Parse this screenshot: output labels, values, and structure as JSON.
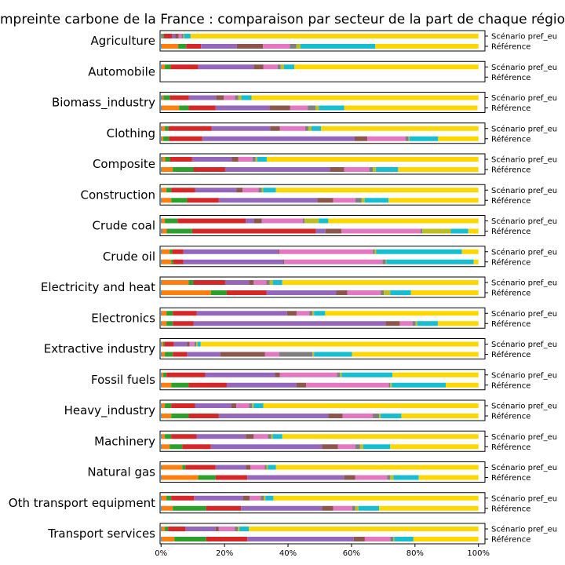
{
  "chart_data": {
    "type": "bar",
    "orientation": "horizontal-stacked-100",
    "title": "Empreinte carbone de la France : comparaison par secteur de la part de chaque région",
    "xlabel": "",
    "ylabel": "",
    "xlim": [
      0,
      1
    ],
    "xticks": [
      "0%",
      "20%",
      "40%",
      "60%",
      "80%",
      "100%"
    ],
    "grid": false,
    "legend": "none",
    "row_labels": [
      "Scénario pref_eu",
      "Référence"
    ],
    "segment_colors": [
      "#1f77b4",
      "#ff7f0e",
      "#2ca02c",
      "#d62728",
      "#9467bd",
      "#8c564b",
      "#e377c2",
      "#7f7f7f",
      "#bcbd22",
      "#17becf",
      "#ffd700"
    ],
    "sectors": [
      {
        "name": "Agriculture",
        "scenario": [
          0.003,
          0.002,
          0.004,
          0.026,
          0.01,
          0.01,
          0.01,
          0.005,
          0.003,
          0.02,
          0.907
        ],
        "reference": [
          0.002,
          0.052,
          0.025,
          0.047,
          0.113,
          0.082,
          0.085,
          0.02,
          0.013,
          0.236,
          0.325
        ]
      },
      {
        "name": "Automobile",
        "scenario": [
          0.002,
          0.01,
          0.018,
          0.087,
          0.175,
          0.03,
          0.045,
          0.01,
          0.01,
          0.033,
          0.58
        ]
      },
      {
        "name": "Biomass_industry",
        "scenario": [
          0.003,
          0.005,
          0.02,
          0.06,
          0.085,
          0.025,
          0.035,
          0.01,
          0.01,
          0.032,
          0.715
        ],
        "reference": [
          0.002,
          0.055,
          0.03,
          0.085,
          0.17,
          0.065,
          0.055,
          0.025,
          0.01,
          0.08,
          0.42
        ]
      },
      {
        "name": "Clothing",
        "scenario": [
          0.002,
          0.01,
          0.012,
          0.135,
          0.185,
          0.03,
          0.08,
          0.01,
          0.01,
          0.03,
          0.496
        ],
        "reference": [
          0.002,
          0.005,
          0.018,
          0.105,
          0.48,
          0.04,
          0.12,
          0.01,
          0.003,
          0.09,
          0.127
        ]
      },
      {
        "name": "Composite",
        "scenario": [
          0.003,
          0.01,
          0.015,
          0.07,
          0.125,
          0.02,
          0.045,
          0.01,
          0.005,
          0.03,
          0.667
        ],
        "reference": [
          0.002,
          0.035,
          0.065,
          0.1,
          0.33,
          0.045,
          0.08,
          0.01,
          0.01,
          0.07,
          0.253
        ]
      },
      {
        "name": "Construction",
        "scenario": [
          0.002,
          0.015,
          0.015,
          0.075,
          0.13,
          0.02,
          0.05,
          0.01,
          0.005,
          0.04,
          0.638
        ],
        "reference": [
          0.002,
          0.03,
          0.05,
          0.1,
          0.31,
          0.05,
          0.07,
          0.02,
          0.01,
          0.075,
          0.283
        ]
      },
      {
        "name": "Crude coal",
        "scenario": [
          0.002,
          0.01,
          0.04,
          0.215,
          0.025,
          0.025,
          0.13,
          0.005,
          0.045,
          0.03,
          0.473
        ],
        "reference": [
          0.003,
          0.015,
          0.08,
          0.39,
          0.03,
          0.05,
          0.25,
          0.005,
          0.09,
          0.055,
          0.032
        ]
      },
      {
        "name": "Crude oil",
        "scenario": [
          0.002,
          0.025,
          0.008,
          0.035,
          0.3,
          0.003,
          0.295,
          0.005,
          0.005,
          0.27,
          0.052
        ],
        "reference": [
          0.002,
          0.03,
          0.006,
          0.032,
          0.315,
          0.003,
          0.31,
          0.01,
          0.002,
          0.275,
          0.015
        ]
      },
      {
        "name": "Electricity and heat",
        "scenario": [
          0.002,
          0.085,
          0.015,
          0.1,
          0.075,
          0.015,
          0.04,
          0.01,
          0.01,
          0.03,
          0.618
        ],
        "reference": [
          0.002,
          0.155,
          0.05,
          0.125,
          0.22,
          0.035,
          0.105,
          0.01,
          0.02,
          0.065,
          0.213
        ]
      },
      {
        "name": "Electronics",
        "scenario": [
          0.002,
          0.015,
          0.02,
          0.075,
          0.285,
          0.03,
          0.04,
          0.01,
          0.005,
          0.035,
          0.483
        ],
        "reference": [
          0.002,
          0.015,
          0.02,
          0.065,
          0.605,
          0.045,
          0.04,
          0.01,
          0.005,
          0.065,
          0.128
        ]
      },
      {
        "name": "Extractive industry",
        "scenario": [
          0.002,
          0.004,
          0.004,
          0.03,
          0.042,
          0.008,
          0.015,
          0.006,
          0.004,
          0.01,
          0.875
        ],
        "reference": [
          0.002,
          0.01,
          0.025,
          0.045,
          0.105,
          0.14,
          0.045,
          0.105,
          0.005,
          0.12,
          0.398
        ]
      },
      {
        "name": "Fossil fuels",
        "scenario": [
          0.002,
          0.005,
          0.01,
          0.122,
          0.22,
          0.015,
          0.18,
          0.01,
          0.005,
          0.16,
          0.271
        ],
        "reference": [
          0.002,
          0.03,
          0.055,
          0.12,
          0.22,
          0.03,
          0.26,
          0.005,
          0.005,
          0.17,
          0.103
        ]
      },
      {
        "name": "Heavy_industry",
        "scenario": [
          0.002,
          0.01,
          0.02,
          0.075,
          0.115,
          0.015,
          0.04,
          0.01,
          0.005,
          0.03,
          0.678
        ],
        "reference": [
          0.002,
          0.03,
          0.055,
          0.095,
          0.345,
          0.045,
          0.095,
          0.02,
          0.005,
          0.065,
          0.243
        ]
      },
      {
        "name": "Machinery",
        "scenario": [
          0.002,
          0.01,
          0.02,
          0.08,
          0.155,
          0.025,
          0.045,
          0.01,
          0.005,
          0.03,
          0.618
        ],
        "reference": [
          0.002,
          0.025,
          0.04,
          0.09,
          0.35,
          0.05,
          0.055,
          0.015,
          0.01,
          0.085,
          0.278
        ]
      },
      {
        "name": "Natural gas",
        "scenario": [
          0.002,
          0.065,
          0.01,
          0.095,
          0.095,
          0.015,
          0.045,
          0.005,
          0.005,
          0.025,
          0.638
        ],
        "reference": [
          0.002,
          0.115,
          0.055,
          0.1,
          0.305,
          0.035,
          0.1,
          0.01,
          0.01,
          0.08,
          0.188
        ]
      },
      {
        "name": "Oth transport equipment",
        "scenario": [
          0.002,
          0.015,
          0.015,
          0.072,
          0.155,
          0.02,
          0.035,
          0.01,
          0.005,
          0.025,
          0.646
        ],
        "reference": [
          0.002,
          0.035,
          0.105,
          0.11,
          0.255,
          0.035,
          0.06,
          0.01,
          0.01,
          0.065,
          0.313
        ]
      },
      {
        "name": "Transport services",
        "scenario": [
          0.002,
          0.01,
          0.01,
          0.055,
          0.095,
          0.01,
          0.05,
          0.01,
          0.005,
          0.03,
          0.723
        ],
        "reference": [
          0.002,
          0.04,
          0.1,
          0.13,
          0.335,
          0.035,
          0.08,
          0.01,
          0.003,
          0.06,
          0.205
        ]
      }
    ]
  }
}
